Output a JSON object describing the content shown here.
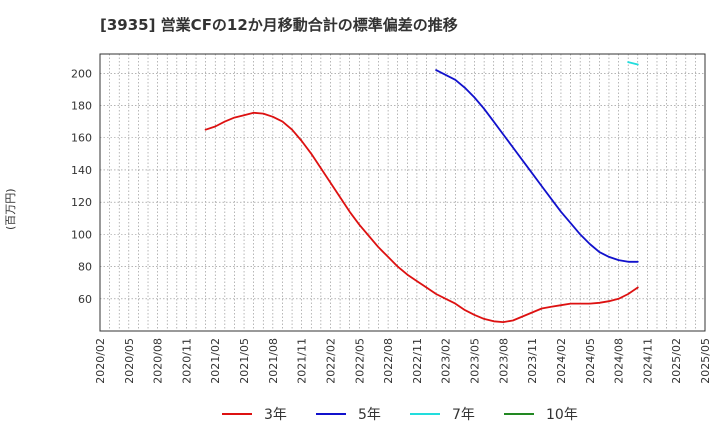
{
  "title": "[3935]  営業CFの12か月移動合計の標準偏差の推移",
  "chart_data": {
    "type": "line",
    "title": "[3935]  営業CFの12か月移動合計の標準偏差の推移",
    "xlabel": "",
    "ylabel": "(百万円)",
    "ylim": [
      40,
      212
    ],
    "yticks": [
      60,
      80,
      100,
      120,
      140,
      160,
      180,
      200
    ],
    "xlim": [
      "2020-02",
      "2025-05"
    ],
    "xticks": [
      "2020/02",
      "2020/05",
      "2020/08",
      "2020/11",
      "2021/02",
      "2021/05",
      "2021/08",
      "2021/11",
      "2022/02",
      "2022/05",
      "2022/08",
      "2022/11",
      "2023/02",
      "2023/05",
      "2023/08",
      "2023/11",
      "2024/02",
      "2024/05",
      "2024/08",
      "2024/11",
      "2025/02",
      "2025/05"
    ],
    "grid": true,
    "legend_position": "bottom",
    "series": [
      {
        "name": "3年",
        "color": "#dd1111",
        "points": [
          [
            "2021-01",
            165
          ],
          [
            "2021-02",
            167
          ],
          [
            "2021-03",
            170
          ],
          [
            "2021-04",
            172.5
          ],
          [
            "2021-05",
            174
          ],
          [
            "2021-06",
            175.5
          ],
          [
            "2021-07",
            175
          ],
          [
            "2021-08",
            173
          ],
          [
            "2021-09",
            170
          ],
          [
            "2021-10",
            165
          ],
          [
            "2021-11",
            158
          ],
          [
            "2021-12",
            150
          ],
          [
            "2022-01",
            141
          ],
          [
            "2022-02",
            132
          ],
          [
            "2022-03",
            123
          ],
          [
            "2022-04",
            114
          ],
          [
            "2022-05",
            106
          ],
          [
            "2022-06",
            99
          ],
          [
            "2022-07",
            92
          ],
          [
            "2022-08",
            86
          ],
          [
            "2022-09",
            80
          ],
          [
            "2022-10",
            75
          ],
          [
            "2022-11",
            71
          ],
          [
            "2022-12",
            67
          ],
          [
            "2023-01",
            63
          ],
          [
            "2023-02",
            60
          ],
          [
            "2023-03",
            57
          ],
          [
            "2023-04",
            53
          ],
          [
            "2023-05",
            50
          ],
          [
            "2023-06",
            47.5
          ],
          [
            "2023-07",
            46
          ],
          [
            "2023-08",
            45.5
          ],
          [
            "2023-09",
            46.5
          ],
          [
            "2023-10",
            49
          ],
          [
            "2023-11",
            51.5
          ],
          [
            "2023-12",
            54
          ],
          [
            "2024-01",
            55
          ],
          [
            "2024-02",
            56
          ],
          [
            "2024-03",
            57
          ],
          [
            "2024-04",
            57
          ],
          [
            "2024-05",
            57
          ],
          [
            "2024-06",
            57.5
          ],
          [
            "2024-07",
            58.5
          ],
          [
            "2024-08",
            60
          ],
          [
            "2024-09",
            63
          ],
          [
            "2024-10",
            67
          ]
        ]
      },
      {
        "name": "5年",
        "color": "#1111cc",
        "points": [
          [
            "2023-01",
            202
          ],
          [
            "2023-02",
            199
          ],
          [
            "2023-03",
            196
          ],
          [
            "2023-04",
            191
          ],
          [
            "2023-05",
            185
          ],
          [
            "2023-06",
            178
          ],
          [
            "2023-07",
            170
          ],
          [
            "2023-08",
            162
          ],
          [
            "2023-09",
            154
          ],
          [
            "2023-10",
            146
          ],
          [
            "2023-11",
            138
          ],
          [
            "2023-12",
            130
          ],
          [
            "2024-01",
            122
          ],
          [
            "2024-02",
            114
          ],
          [
            "2024-03",
            107
          ],
          [
            "2024-04",
            100
          ],
          [
            "2024-05",
            94
          ],
          [
            "2024-06",
            89
          ],
          [
            "2024-07",
            86
          ],
          [
            "2024-08",
            84
          ],
          [
            "2024-09",
            83
          ],
          [
            "2024-10",
            83
          ]
        ]
      },
      {
        "name": "7年",
        "color": "#22dddd",
        "points": [
          [
            "2024-09",
            207
          ],
          [
            "2024-10",
            205.5
          ]
        ]
      },
      {
        "name": "10年",
        "color": "#228822",
        "points": []
      }
    ]
  }
}
